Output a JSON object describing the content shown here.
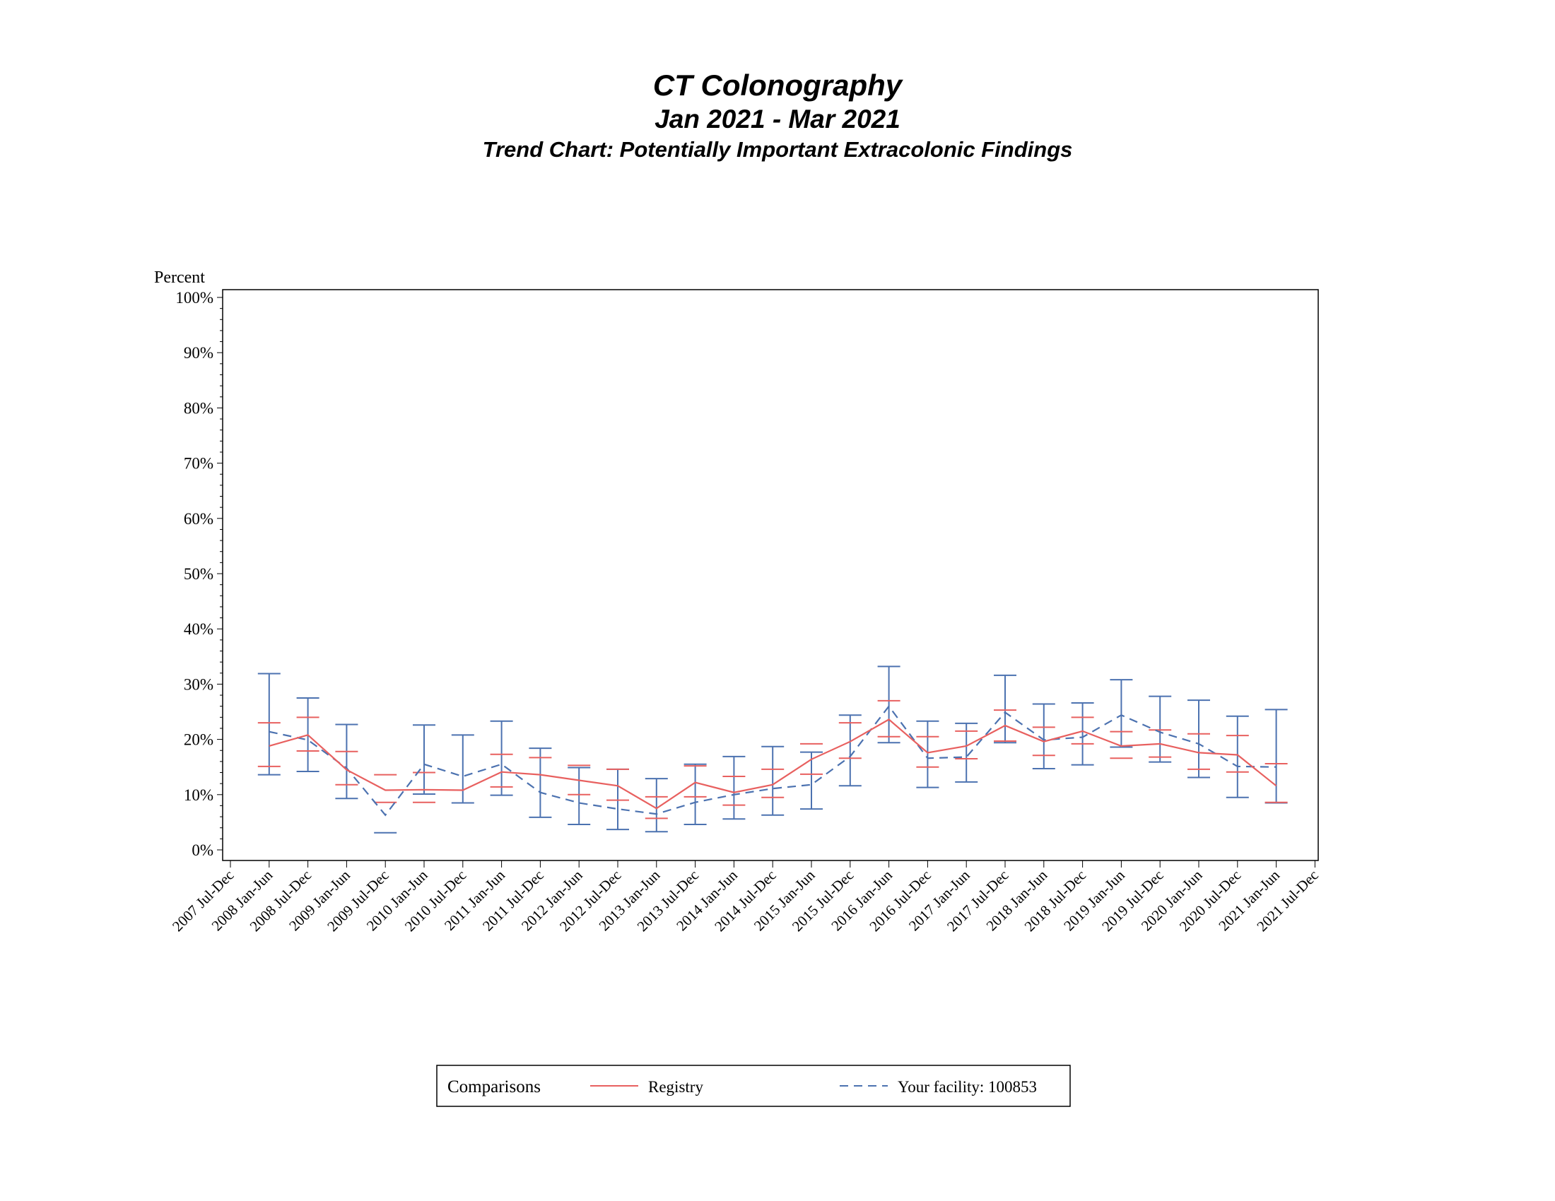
{
  "title": "CT Colonography",
  "subtitle": "Jan 2021 - Mar 2021",
  "subtitle2": "Trend Chart: Potentially Important Extracolonic Findings",
  "chart_data": {
    "type": "line",
    "ylabel": "Percent",
    "ylim": [
      0,
      100
    ],
    "yticks": [
      "0%",
      "10%",
      "20%",
      "30%",
      "40%",
      "50%",
      "60%",
      "70%",
      "80%",
      "90%",
      "100%"
    ],
    "categories": [
      "2007 Jul-Dec",
      "2008 Jan-Jun",
      "2008 Jul-Dec",
      "2009 Jan-Jun",
      "2009 Jul-Dec",
      "2010 Jan-Jun",
      "2010 Jul-Dec",
      "2011 Jan-Jun",
      "2011 Jul-Dec",
      "2012 Jan-Jun",
      "2012 Jul-Dec",
      "2013 Jan-Jun",
      "2013 Jul-Dec",
      "2014 Jan-Jun",
      "2014 Jul-Dec",
      "2015 Jan-Jun",
      "2015 Jul-Dec",
      "2016 Jan-Jun",
      "2016 Jul-Dec",
      "2017 Jan-Jun",
      "2017 Jul-Dec",
      "2018 Jan-Jun",
      "2018 Jul-Dec",
      "2019 Jan-Jun",
      "2019 Jul-Dec",
      "2020 Jan-Jun",
      "2020 Jul-Dec",
      "2021 Jan-Jun",
      "2021 Jul-Dec"
    ],
    "legend_title": "Comparisons",
    "legend_position": "bottom",
    "grid": false,
    "series": [
      {
        "name": "Registry",
        "color": "#e8605f",
        "dash": "solid",
        "values": [
          null,
          18.8,
          20.8,
          14.5,
          10.8,
          10.9,
          10.8,
          14.1,
          13.6,
          12.6,
          11.6,
          7.5,
          12.2,
          10.4,
          11.8,
          16.4,
          19.6,
          23.6,
          17.6,
          18.8,
          22.5,
          19.6,
          21.5,
          18.8,
          19.2,
          17.6,
          17.2,
          11.6,
          null
        ],
        "upper": [
          null,
          23.0,
          24.0,
          17.8,
          13.6,
          14.0,
          null,
          17.3,
          16.7,
          15.3,
          14.6,
          9.6,
          15.2,
          13.3,
          14.6,
          19.2,
          23.0,
          27.0,
          20.5,
          21.5,
          25.3,
          22.2,
          24.0,
          21.4,
          21.7,
          21.0,
          20.7,
          15.6,
          null
        ],
        "lower": [
          null,
          15.1,
          17.9,
          11.8,
          8.6,
          8.6,
          null,
          11.4,
          null,
          10.0,
          9.0,
          5.7,
          9.6,
          8.1,
          9.5,
          13.7,
          16.6,
          20.5,
          15.0,
          16.5,
          19.7,
          17.1,
          19.2,
          16.6,
          16.8,
          14.6,
          14.1,
          8.6,
          null
        ]
      },
      {
        "name": "Your facility: 100853",
        "color": "#4c72b0",
        "dash": "dashed",
        "values": [
          null,
          21.4,
          19.9,
          14.8,
          6.3,
          15.5,
          13.3,
          15.5,
          10.4,
          8.5,
          7.4,
          6.5,
          8.6,
          10.0,
          11.1,
          11.8,
          16.9,
          26.0,
          16.6,
          16.8,
          24.9,
          19.9,
          20.4,
          24.4,
          21.3,
          19.2,
          15.1,
          15.0,
          null
        ],
        "upper": [
          null,
          31.9,
          27.5,
          22.7,
          null,
          22.6,
          20.8,
          23.3,
          18.4,
          14.9,
          14.6,
          12.9,
          15.5,
          16.9,
          18.7,
          17.7,
          24.4,
          33.2,
          23.3,
          22.9,
          31.6,
          26.4,
          26.6,
          30.8,
          27.8,
          27.1,
          24.2,
          25.4,
          null
        ],
        "lower": [
          null,
          13.6,
          14.2,
          9.3,
          3.1,
          10.1,
          8.5,
          9.9,
          5.9,
          4.6,
          3.7,
          3.3,
          4.6,
          5.6,
          6.3,
          7.4,
          11.6,
          19.4,
          11.3,
          12.3,
          19.4,
          14.7,
          15.4,
          18.6,
          15.9,
          13.1,
          9.5,
          8.5,
          null
        ]
      }
    ]
  }
}
